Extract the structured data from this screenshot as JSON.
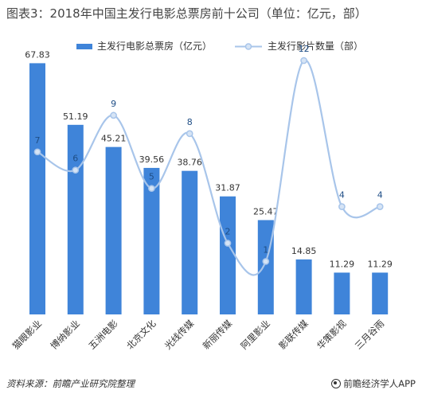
{
  "chart_data": {
    "type": "bar",
    "title": "图表3：2018年中国主发行电影总票房前十公司（单位：亿元，部）",
    "categories": [
      "猫眼影业",
      "博纳影业",
      "五洲电影",
      "北京文化",
      "光线传媒",
      "新丽传媒",
      "阿里影业",
      "影联传媒",
      "华策影视",
      "三月谷雨"
    ],
    "series": [
      {
        "name": "主发行电影总票房（亿元）",
        "type": "bar",
        "values": [
          67.83,
          51.19,
          45.21,
          39.56,
          38.76,
          31.87,
          25.47,
          14.85,
          11.29,
          11.29
        ]
      },
      {
        "name": "主发行影片数量（部）",
        "type": "line",
        "values": [
          7,
          6,
          9,
          5,
          8,
          2,
          1,
          12,
          4,
          4
        ]
      }
    ],
    "ylim": [
      0,
      72
    ],
    "y2lim": [
      -1.9,
      12.7
    ],
    "colors": {
      "bar": "#3f84d9",
      "line": "#a8c5ea",
      "marker_fill": "#d6e4f5",
      "label": "#333333",
      "line_label": "#1f4e86"
    }
  },
  "footer": {
    "source": "资料来源：前瞻产业研究院整理",
    "brand": "前瞻经济学人APP"
  }
}
